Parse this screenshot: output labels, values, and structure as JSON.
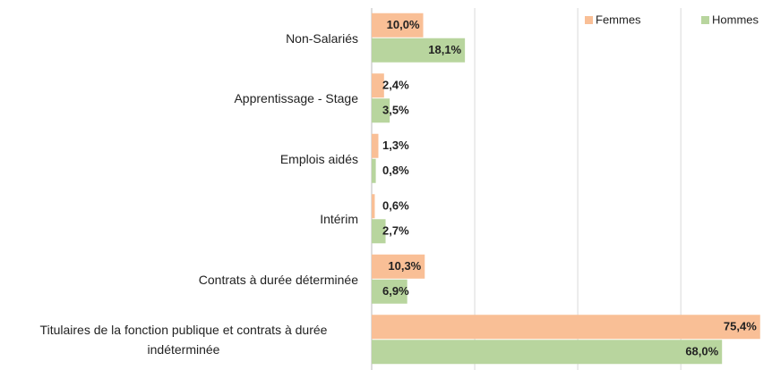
{
  "chart_data": {
    "type": "hbar",
    "categories": [
      "Non-Salariés",
      "Apprentissage - Stage",
      "Emplois aidés",
      "Intérim",
      "Contrats à durée déterminée",
      "Titulaires de la fonction publique et contrats à durée indéterminée"
    ],
    "series": [
      {
        "name": "Femmes",
        "color": "#f9bf96",
        "values": [
          10.0,
          2.4,
          1.3,
          0.6,
          10.3,
          75.4
        ],
        "value_labels": [
          "10,0%",
          "2,4%",
          "1,3%",
          "0,6%",
          "10,3%",
          "75,4%"
        ]
      },
      {
        "name": "Hommes",
        "color": "#b8d59e",
        "values": [
          18.1,
          3.5,
          0.8,
          2.7,
          6.9,
          68.0
        ],
        "value_labels": [
          "18,1%",
          "3,5%",
          "0,8%",
          "2,7%",
          "6,9%",
          "68,0%"
        ]
      }
    ],
    "xlim": [
      0,
      77.7
    ],
    "xticks": [
      0,
      20,
      40,
      60
    ],
    "grid": true,
    "legend": "top-right"
  }
}
